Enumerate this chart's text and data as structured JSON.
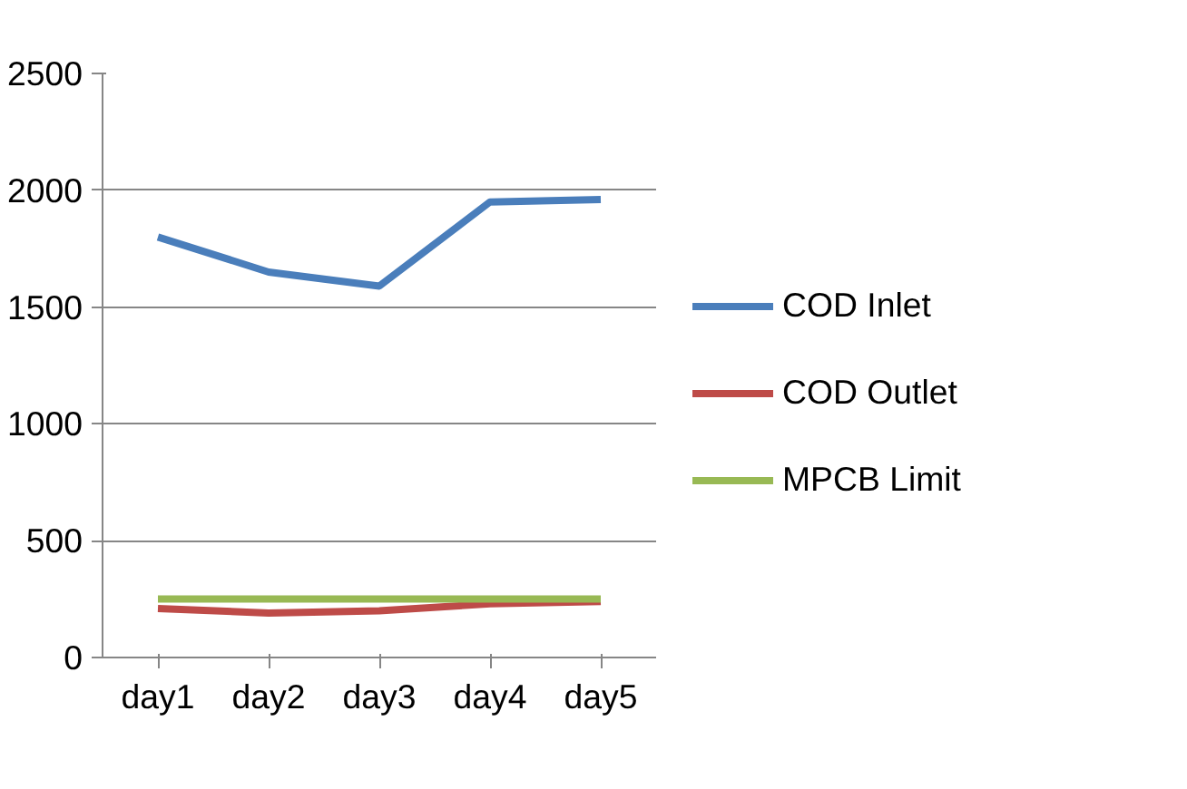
{
  "chart_data": {
    "type": "line",
    "categories": [
      "day1",
      "day2",
      "day3",
      "day4",
      "day5"
    ],
    "series": [
      {
        "name": "COD Inlet",
        "color": "#4a7ebb",
        "values": [
          1800,
          1650,
          1590,
          1950,
          1960
        ]
      },
      {
        "name": "COD Outlet",
        "color": "#be4b48",
        "values": [
          210,
          190,
          200,
          230,
          240
        ]
      },
      {
        "name": "MPCB Limit",
        "color": "#98b954",
        "values": [
          250,
          250,
          250,
          250,
          250
        ]
      }
    ],
    "ylim": [
      0,
      2500
    ],
    "yticks": [
      0,
      500,
      1000,
      1500,
      2000,
      2500
    ],
    "grid": "y",
    "legend": "right",
    "marker": "none",
    "line_style": "solid"
  }
}
